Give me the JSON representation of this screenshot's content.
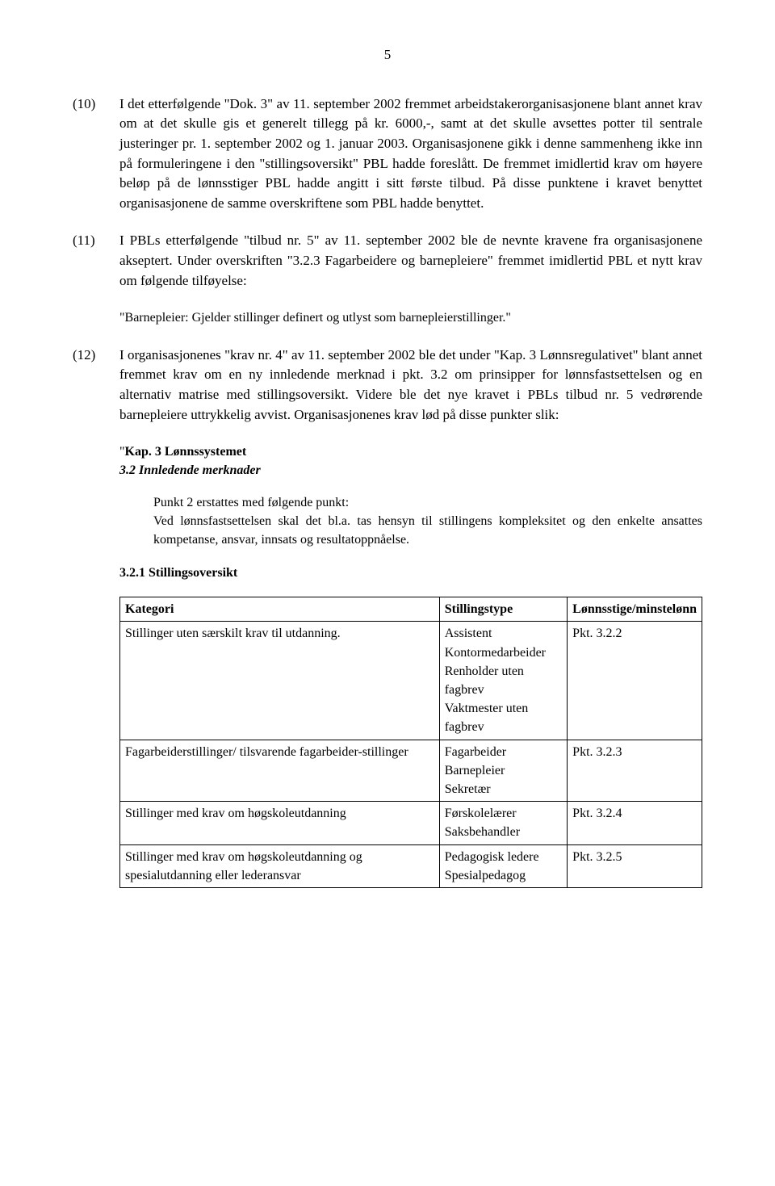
{
  "page_number": "5",
  "paragraphs": [
    {
      "num": "(10)",
      "text": "I det etterfølgende \"Dok. 3\" av 11. september 2002 fremmet arbeidstakerorganisasjonene blant annet krav om at det skulle gis et generelt tillegg på kr. 6000,-, samt at det skulle avsettes potter til sentrale justeringer pr. 1. september 2002 og 1. januar 2003. Organisasjonene gikk i denne sammenheng ikke inn på formuleringene i den \"stillingsoversikt\" PBL hadde foreslått. De fremmet imidlertid krav om høyere beløp på de lønnsstiger PBL hadde angitt i sitt første tilbud. På disse punktene i kravet benyttet organisasjonene de samme overskriftene som PBL hadde benyttet."
    },
    {
      "num": "(11)",
      "text": "I PBLs etterfølgende \"tilbud nr. 5\" av 11. september 2002 ble de nevnte kravene fra organisasjonene akseptert. Under overskriften \"3.2.3 Fagarbeidere og barnepleiere\" fremmet imidlertid PBL et nytt krav om følgende tilføyelse:"
    }
  ],
  "quote11": "\"Barnepleier: Gjelder stillinger definert og utlyst som barnepleierstillinger.\"",
  "paragraph12": {
    "num": "(12)",
    "text": "I organisasjonenes \"krav nr. 4\" av 11. september 2002 ble det under \"Kap. 3 Lønnsregulativet\" blant annet fremmet krav om en ny innledende merknad i pkt. 3.2 om prinsipper for lønnsfastsettelsen og en alternativ matrise med stillingsoversikt. Videre ble det nye kravet i PBLs tilbud nr. 5 vedrørende barnepleiere uttrykkelig avvist. Organisasjonenes krav lød på disse punkter slik:"
  },
  "kap": {
    "line1_prefix": "\"",
    "line1_bold": "Kap. 3  Lønnssystemet",
    "line2": "3.2  Innledende merknader"
  },
  "punkt2": {
    "line1": "Punkt 2 erstattes med følgende punkt:",
    "line2": "Ved lønnsfastsettelsen skal det bl.a. tas hensyn til stillingens kompleksitet og den enkelte ansattes kompetanse, ansvar, innsats og resultatoppnåelse."
  },
  "tableHeading": "3.2.1  Stillingsoversikt",
  "table": {
    "headers": [
      "Kategori",
      "Stillingstype",
      "Lønnsstige/minstelønn"
    ],
    "rows": [
      {
        "c0": "Stillinger uten særskilt krav til utdanning.",
        "c1": "Assistent\nKontormedarbeider\nRenholder uten fagbrev\nVaktmester uten fagbrev",
        "c2": "Pkt. 3.2.2"
      },
      {
        "c0": "Fagarbeiderstillinger/ tilsvarende fagarbeider-stillinger",
        "c1": "Fagarbeider\nBarnepleier\nSekretær",
        "c2": "Pkt. 3.2.3"
      },
      {
        "c0": "Stillinger med krav om høgskoleutdanning",
        "c1": "Førskolelærer\nSaksbehandler",
        "c2": "Pkt. 3.2.4"
      },
      {
        "c0": "Stillinger med krav om høgskoleutdanning og spesialutdanning eller lederansvar",
        "c1": "Pedagogisk ledere\nSpesialpedagog",
        "c2": "Pkt. 3.2.5"
      }
    ]
  }
}
